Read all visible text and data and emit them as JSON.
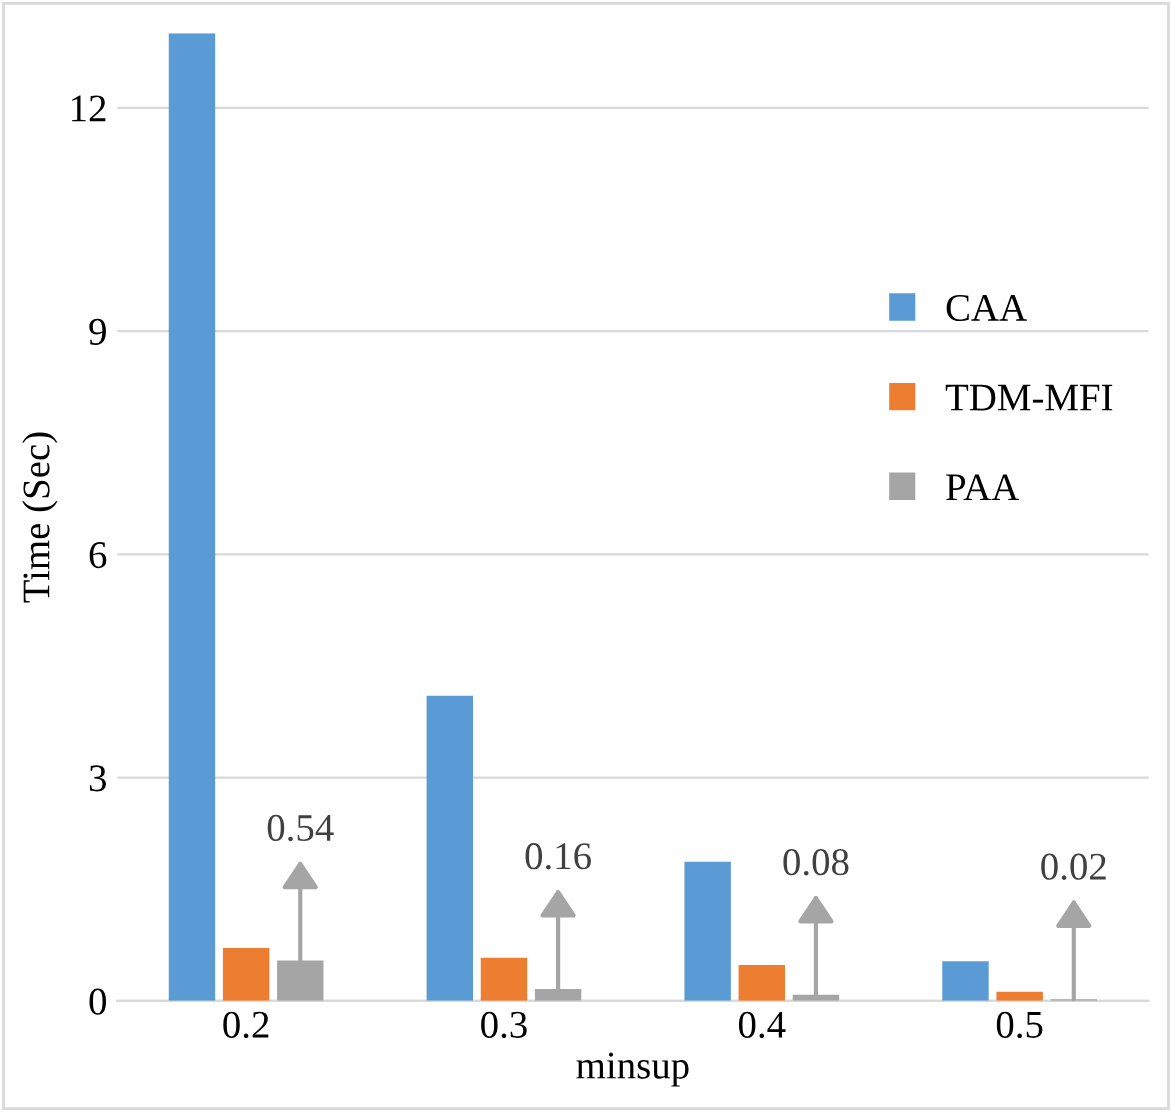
{
  "chart_data": {
    "type": "bar",
    "xlabel": "minsup",
    "ylabel": "Time (Sec)",
    "categories": [
      "0.2",
      "0.3",
      "0.4",
      "0.5"
    ],
    "series": [
      {
        "name": "CAA",
        "color": "#5b9bd5",
        "values": [
          13,
          4.1,
          1.87,
          0.53
        ]
      },
      {
        "name": "TDM-MFI",
        "color": "#ed7d31",
        "values": [
          0.71,
          0.58,
          0.48,
          0.12
        ]
      },
      {
        "name": "PAA",
        "color": "#a5a5a5",
        "values": [
          0.54,
          0.16,
          0.08,
          0.02
        ],
        "value_labels": [
          "0.54",
          "0.16",
          "0.08",
          "0.02"
        ]
      }
    ],
    "ylim": [
      0,
      13
    ],
    "yticks": [
      0,
      3,
      6,
      9,
      12
    ],
    "grid": "y",
    "legend": "right"
  }
}
